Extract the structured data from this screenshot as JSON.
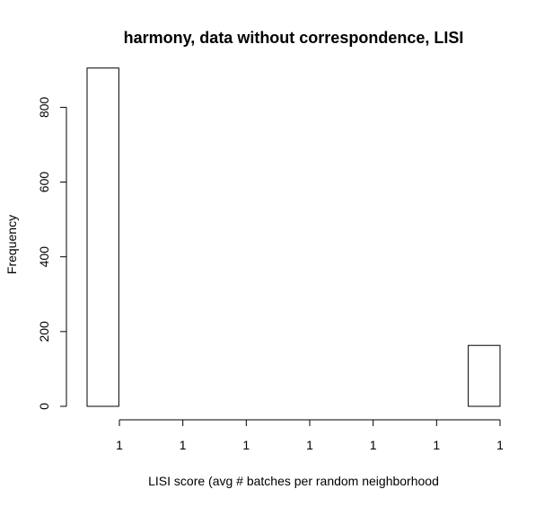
{
  "chart_data": {
    "type": "bar",
    "title": "harmony, data without correspondence, LISI",
    "xlabel": "LISI score (avg # batches per random neighborhood",
    "ylabel": "Frequency",
    "categories": [
      "",
      "",
      "",
      "",
      "",
      "",
      "",
      "",
      "",
      "",
      "",
      "",
      ""
    ],
    "values": [
      905,
      0,
      0,
      0,
      0,
      0,
      0,
      0,
      0,
      0,
      0,
      0,
      163
    ],
    "ylim": [
      0,
      950
    ],
    "yticks": [
      0,
      200,
      400,
      600,
      800
    ],
    "xtick_labels": [
      "1",
      "1",
      "1",
      "1",
      "1",
      "1",
      "1"
    ],
    "grid": false,
    "legend": "none",
    "colors": {
      "bar_fill": "#ffffff",
      "bar_stroke": "#000000",
      "axis": "#000000",
      "text": "#000000"
    }
  }
}
